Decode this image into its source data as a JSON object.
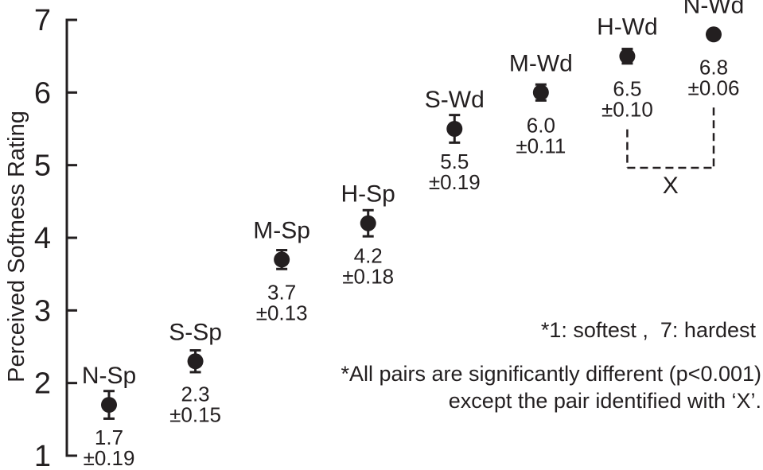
{
  "colors": {
    "ink": "#231f20",
    "background": "#ffffff"
  },
  "chart_data": {
    "type": "scatter",
    "title": "",
    "xlabel": "",
    "ylabel": "Perceived Softness Rating",
    "ylim": [
      1,
      7
    ],
    "yticks": [
      1,
      2,
      3,
      4,
      5,
      6,
      7
    ],
    "grid": false,
    "legend": false,
    "categories": [
      "N-Sp",
      "S-Sp",
      "M-Sp",
      "H-Sp",
      "S-Wd",
      "M-Wd",
      "H-Wd",
      "N-Wd"
    ],
    "points": [
      {
        "label": "N-Sp",
        "value": 1.7,
        "error": 0.19,
        "value_text": "1.7",
        "error_text": "±0.19"
      },
      {
        "label": "S-Sp",
        "value": 2.3,
        "error": 0.15,
        "value_text": "2.3",
        "error_text": "±0.15"
      },
      {
        "label": "M-Sp",
        "value": 3.7,
        "error": 0.13,
        "value_text": "3.7",
        "error_text": "±0.13"
      },
      {
        "label": "H-Sp",
        "value": 4.2,
        "error": 0.18,
        "value_text": "4.2",
        "error_text": "±0.18"
      },
      {
        "label": "S-Wd",
        "value": 5.5,
        "error": 0.19,
        "value_text": "5.5",
        "error_text": "±0.19"
      },
      {
        "label": "M-Wd",
        "value": 6.0,
        "error": 0.11,
        "value_text": "6.0",
        "error_text": "±0.11"
      },
      {
        "label": "H-Wd",
        "value": 6.5,
        "error": 0.1,
        "value_text": "6.5",
        "error_text": "±0.10"
      },
      {
        "label": "N-Wd",
        "value": 6.8,
        "error": 0.06,
        "value_text": "6.8",
        "error_text": "±0.06"
      }
    ],
    "bracket": {
      "from": "H-Wd",
      "to": "N-Wd",
      "label": "X"
    },
    "notes": [
      "*1: softest ,  7: hardest",
      "*All pairs are significantly different (p<0.001)",
      "except the pair identified with ‘X’."
    ]
  }
}
